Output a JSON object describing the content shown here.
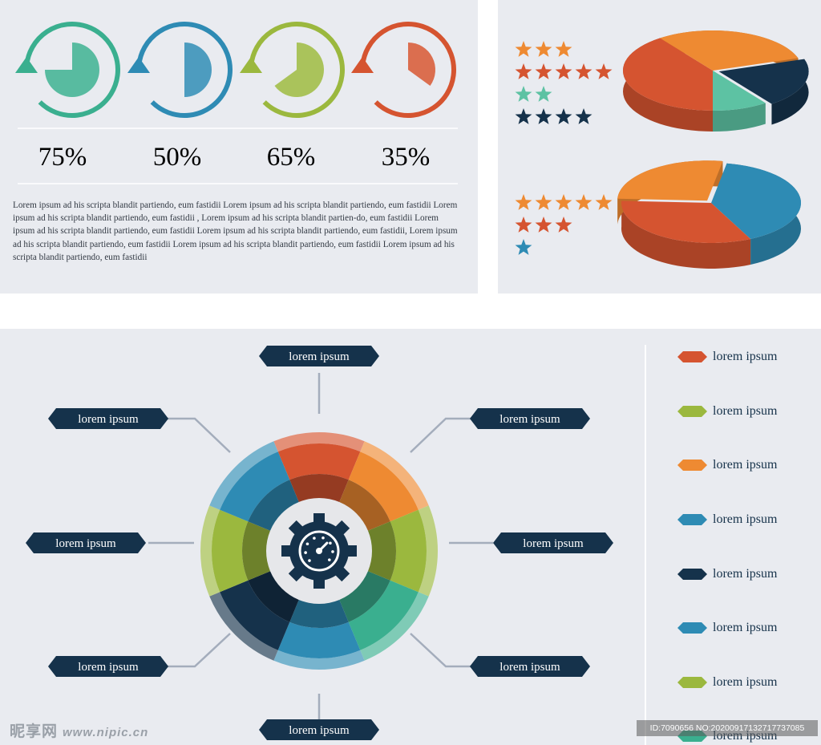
{
  "colors": {
    "teal": "#3aaf8f",
    "blue": "#2e8bb4",
    "green": "#9bb83e",
    "red": "#d55430",
    "orange": "#ee8a32",
    "navy": "#15324b",
    "panel": "#e9ebf0",
    "light_teal": "#5dc2a3"
  },
  "progress": {
    "items": [
      {
        "value": 75,
        "label": "75%",
        "color": "#3aaf8f",
        "icon": "circular-arrow-icon"
      },
      {
        "value": 50,
        "label": "50%",
        "color": "#2e8bb4",
        "icon": "circular-arrow-icon"
      },
      {
        "value": 65,
        "label": "65%",
        "color": "#9bb83e",
        "icon": "circular-arrow-icon"
      },
      {
        "value": 35,
        "label": "35%",
        "color": "#d55430",
        "icon": "circular-arrow-icon"
      }
    ]
  },
  "paragraph": "Lorem ipsum ad his scripta blandit partiendo, eum fastidii Lorem ipsum ad his scripta blandit partiendo, eum fastidii Lorem ipsum ad his scripta blandit partiendo, eum fastidii  , Lorem ipsum ad his scripta blandit partien-do, eum fastidii Lorem ipsum ad his scripta blandit partiendo, eum fastidii Lorem ipsum ad his scripta blandit partiendo, eum fastidii, Lorem ipsum ad his scripta blandit partiendo, eum fastidii Lorem ipsum ad his scripta blandit partiendo, eum fastidii Lorem ipsum ad his scripta blandit partiendo, eum fastidii",
  "chart_data": [
    {
      "type": "pie",
      "style": "3d",
      "slices": [
        {
          "value": 40,
          "color": "#d55430"
        },
        {
          "value": 30,
          "color": "#ee8a32"
        },
        {
          "value": 20,
          "color": "#15324b"
        },
        {
          "value": 10,
          "color": "#5dc2a3"
        }
      ],
      "ratings": [
        {
          "stars": 3,
          "color": "#ee8a32"
        },
        {
          "stars": 5,
          "color": "#d55430"
        },
        {
          "stars": 2,
          "color": "#5dc2a3"
        },
        {
          "stars": 4,
          "color": "#15324b"
        }
      ]
    },
    {
      "type": "pie",
      "style": "3d",
      "slices": [
        {
          "value": 40,
          "color": "#2e8bb4"
        },
        {
          "value": 33,
          "color": "#d55430"
        },
        {
          "value": 27,
          "color": "#ee8a32"
        }
      ],
      "ratings": [
        {
          "stars": 5,
          "color": "#ee8a32"
        },
        {
          "stars": 3,
          "color": "#d55430"
        },
        {
          "stars": 1,
          "color": "#2e8bb4"
        }
      ]
    },
    {
      "type": "pie",
      "style": "donut",
      "center_icon": "gear-gauge-icon",
      "slices": [
        {
          "value": 1,
          "color": "#d55430"
        },
        {
          "value": 1,
          "color": "#ee8a32"
        },
        {
          "value": 1,
          "color": "#9bb83e"
        },
        {
          "value": 1,
          "color": "#3aaf8f"
        },
        {
          "value": 1,
          "color": "#2e8bb4"
        },
        {
          "value": 1,
          "color": "#15324b"
        },
        {
          "value": 1,
          "color": "#9bb83e"
        },
        {
          "value": 1,
          "color": "#2e8bb4"
        }
      ],
      "callouts": [
        "lorem ipsum",
        "lorem ipsum",
        "lorem ipsum",
        "lorem ipsum",
        "lorem ipsum",
        "lorem ipsum",
        "lorem ipsum",
        "lorem ipsum"
      ]
    }
  ],
  "legend": {
    "items": [
      {
        "label": "lorem ipsum",
        "color": "#d55430"
      },
      {
        "label": "lorem ipsum",
        "color": "#9bb83e"
      },
      {
        "label": "lorem ipsum",
        "color": "#ee8a32"
      },
      {
        "label": "lorem ipsum",
        "color": "#2e8bb4"
      },
      {
        "label": "lorem ipsum",
        "color": "#15324b"
      },
      {
        "label": "lorem ipsum",
        "color": "#2e8bb4"
      },
      {
        "label": "lorem ipsum",
        "color": "#9bb83e"
      },
      {
        "label": "lorem ipsum",
        "color": "#3aaf8f"
      }
    ]
  },
  "watermark": {
    "text": "昵享网",
    "url": "www.nipic.cn"
  },
  "photo_id": "ID:7090656 NO:20200917132717737085"
}
